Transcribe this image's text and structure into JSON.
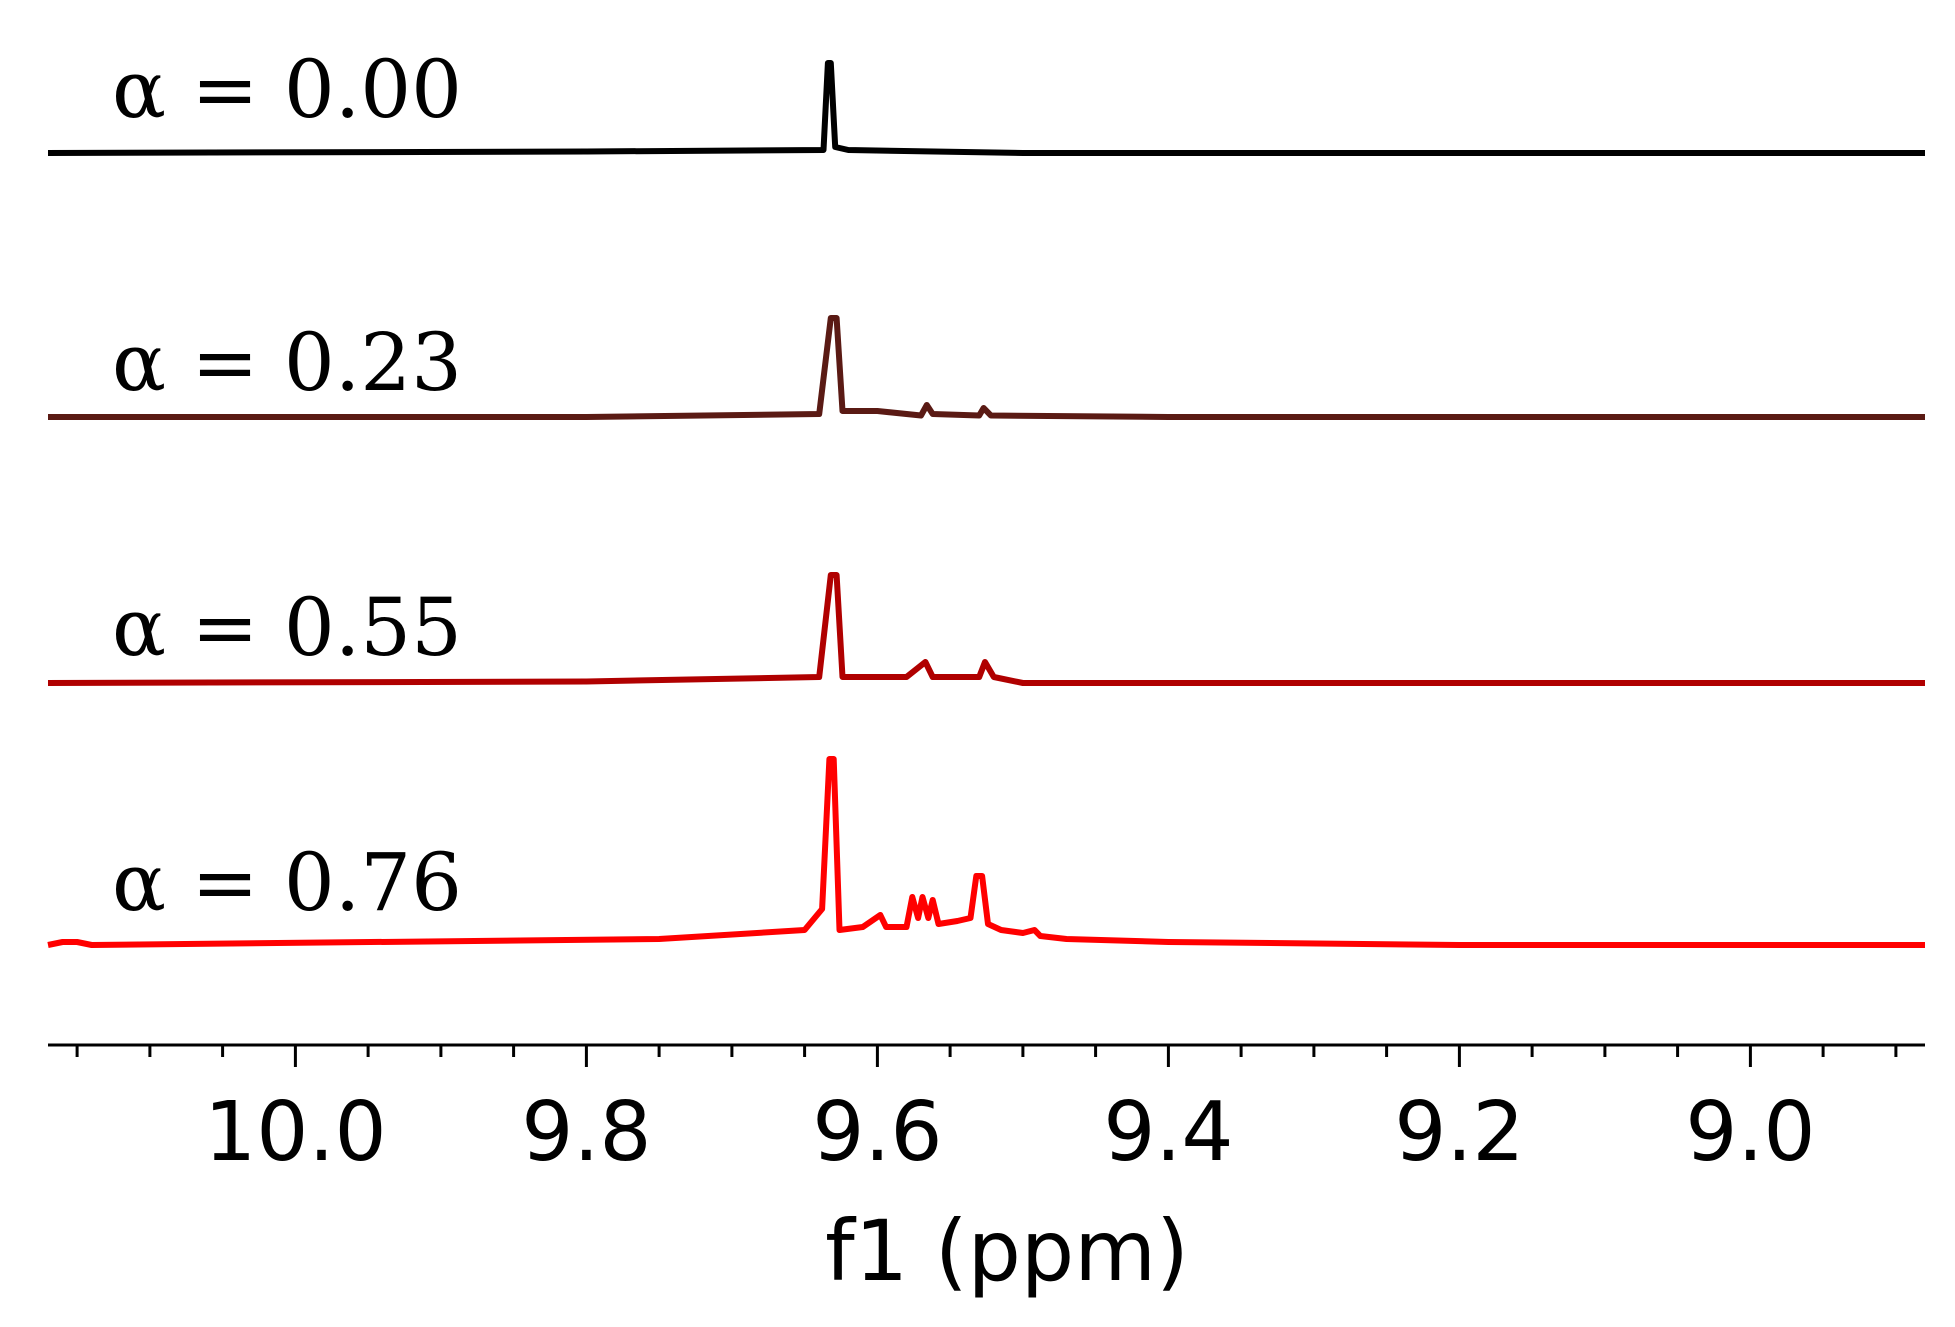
{
  "chart_data": {
    "type": "line",
    "xlabel": "f1 (ppm)",
    "xlim": [
      10.17,
      8.88
    ],
    "x_reversed": true,
    "x_ticks": [
      10.0,
      9.8,
      9.6,
      9.4,
      9.2,
      9.0
    ],
    "x_tick_labels": [
      "10.0",
      "9.8",
      "9.6",
      "9.4",
      "9.2",
      "9.0"
    ],
    "x_minor_step": 0.05,
    "y_units": "relative intensity (stacked)",
    "series": [
      {
        "name": "α = 0.00",
        "color": "#000000",
        "points": [
          [
            10.17,
            0
          ],
          [
            9.8,
            0.005
          ],
          [
            9.637,
            0.01
          ],
          [
            9.634,
            0.3
          ],
          [
            9.632,
            0.3
          ],
          [
            9.629,
            0.02
          ],
          [
            9.62,
            0.01
          ],
          [
            9.5,
            0
          ],
          [
            8.88,
            0
          ]
        ]
      },
      {
        "name": "α = 0.23",
        "color": "#5a1a14",
        "points": [
          [
            10.17,
            0
          ],
          [
            9.8,
            0
          ],
          [
            9.64,
            0.01
          ],
          [
            9.632,
            0.33
          ],
          [
            9.628,
            0.33
          ],
          [
            9.624,
            0.02
          ],
          [
            9.6,
            0.02
          ],
          [
            9.57,
            0.005
          ],
          [
            9.566,
            0.04
          ],
          [
            9.562,
            0.01
          ],
          [
            9.53,
            0.005
          ],
          [
            9.527,
            0.03
          ],
          [
            9.522,
            0.005
          ],
          [
            9.4,
            0
          ],
          [
            8.88,
            0
          ]
        ]
      },
      {
        "name": "α = 0.55",
        "color": "#b00000",
        "points": [
          [
            10.17,
            0
          ],
          [
            9.8,
            0.005
          ],
          [
            9.64,
            0.02
          ],
          [
            9.632,
            0.36
          ],
          [
            9.628,
            0.36
          ],
          [
            9.624,
            0.02
          ],
          [
            9.58,
            0.02
          ],
          [
            9.567,
            0.07
          ],
          [
            9.562,
            0.02
          ],
          [
            9.53,
            0.02
          ],
          [
            9.526,
            0.07
          ],
          [
            9.52,
            0.02
          ],
          [
            9.5,
            0
          ],
          [
            8.88,
            0
          ]
        ]
      },
      {
        "name": "α = 0.76",
        "color": "#ff0000",
        "points": [
          [
            10.17,
            0
          ],
          [
            10.16,
            0.01
          ],
          [
            10.15,
            0.01
          ],
          [
            10.14,
            0
          ],
          [
            9.75,
            0.02
          ],
          [
            9.65,
            0.05
          ],
          [
            9.638,
            0.12
          ],
          [
            9.633,
            0.62
          ],
          [
            9.63,
            0.62
          ],
          [
            9.626,
            0.05
          ],
          [
            9.61,
            0.06
          ],
          [
            9.598,
            0.1
          ],
          [
            9.594,
            0.06
          ],
          [
            9.58,
            0.06
          ],
          [
            9.576,
            0.16
          ],
          [
            9.572,
            0.09
          ],
          [
            9.569,
            0.16
          ],
          [
            9.565,
            0.09
          ],
          [
            9.562,
            0.15
          ],
          [
            9.558,
            0.07
          ],
          [
            9.545,
            0.08
          ],
          [
            9.536,
            0.09
          ],
          [
            9.532,
            0.23
          ],
          [
            9.528,
            0.23
          ],
          [
            9.524,
            0.07
          ],
          [
            9.515,
            0.05
          ],
          [
            9.5,
            0.04
          ],
          [
            9.492,
            0.05
          ],
          [
            9.488,
            0.03
          ],
          [
            9.47,
            0.02
          ],
          [
            9.4,
            0.01
          ],
          [
            9.2,
            0
          ],
          [
            8.88,
            0
          ]
        ]
      }
    ]
  }
}
